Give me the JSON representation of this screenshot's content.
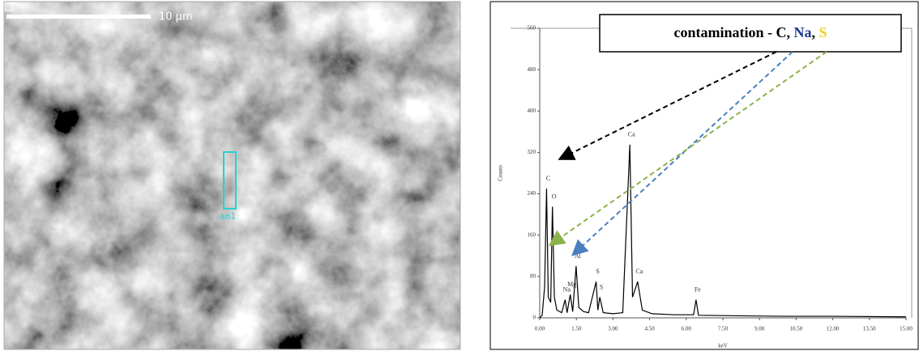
{
  "image": {
    "scale_label": "10 µm",
    "roi_label": "an1"
  },
  "chart_data": {
    "type": "line",
    "annotation": [
      {
        "text": "contamination - C, ",
        "color": "#000000"
      },
      {
        "text": "Na",
        "color": "#1f3a8a"
      },
      {
        "text": ", ",
        "color": "#000000"
      },
      {
        "text": "S",
        "color": "#f0d020"
      }
    ],
    "xlabel": "keV",
    "ylabel": "Counts",
    "x": [
      0,
      0.1,
      0.2,
      0.28,
      0.35,
      0.45,
      0.52,
      0.6,
      0.7,
      0.9,
      1.04,
      1.12,
      1.25,
      1.35,
      1.49,
      1.6,
      1.8,
      2.0,
      2.31,
      2.38,
      2.46,
      2.6,
      3.0,
      3.4,
      3.69,
      3.8,
      4.01,
      4.2,
      4.6,
      5.5,
      6.3,
      6.4,
      6.5,
      8,
      10,
      12,
      15
    ],
    "series": [
      {
        "color": "#000000",
        "values": [
          0,
          5,
          60,
          250,
          40,
          30,
          215,
          40,
          15,
          10,
          35,
          10,
          45,
          12,
          100,
          20,
          12,
          10,
          70,
          15,
          40,
          10,
          8,
          10,
          335,
          40,
          70,
          15,
          8,
          6,
          6,
          35,
          5,
          4,
          3,
          3,
          2
        ]
      }
    ],
    "peaks": [
      {
        "label": "C",
        "x": 0.28,
        "y": 250
      },
      {
        "label": "O",
        "x": 0.52,
        "y": 215
      },
      {
        "label": "Na",
        "x": 1.04,
        "y": 35
      },
      {
        "label": "Mg",
        "x": 1.25,
        "y": 45
      },
      {
        "label": "Al",
        "x": 1.49,
        "y": 100
      },
      {
        "label": "S",
        "x": 2.31,
        "y": 70
      },
      {
        "label": "S",
        "x": 2.46,
        "y": 40
      },
      {
        "label": "Ca",
        "x": 3.69,
        "y": 335
      },
      {
        "label": "Ca",
        "x": 4.01,
        "y": 70
      },
      {
        "label": "Fe",
        "x": 6.4,
        "y": 35
      }
    ],
    "xlim": [
      0,
      15
    ],
    "xticks": [
      {
        "value": 0,
        "label": "0.00"
      },
      {
        "value": 1.5,
        "label": "1.50"
      },
      {
        "value": 3,
        "label": "3.00"
      },
      {
        "value": 4.5,
        "label": "4.50"
      },
      {
        "value": 6,
        "label": "6.00"
      },
      {
        "value": 7.5,
        "label": "7.50"
      },
      {
        "value": 9,
        "label": "9.00"
      },
      {
        "value": 10.5,
        "label": "10.50"
      },
      {
        "value": 12,
        "label": "12.00"
      },
      {
        "value": 13.5,
        "label": "13.50"
      },
      {
        "value": 15,
        "label": "15.00"
      }
    ],
    "ylim": [
      0,
      560
    ],
    "yticks": [
      0,
      80,
      160,
      240,
      320,
      400,
      480,
      560
    ]
  }
}
